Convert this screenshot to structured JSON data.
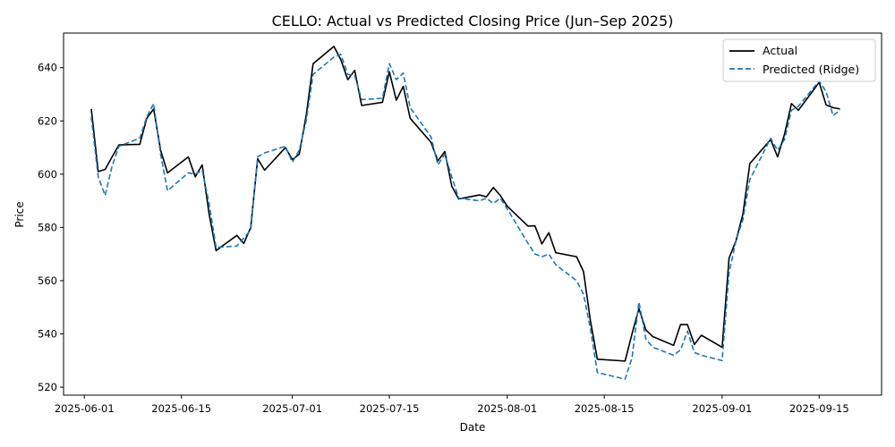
{
  "chart_data": {
    "type": "line",
    "title": "CELLO: Actual vs Predicted Closing Price (Jun–Sep 2025)",
    "xlabel": "Date",
    "ylabel": "Price",
    "xlim": [
      "2025-05-29",
      "2025-09-24"
    ],
    "ylim": [
      517,
      653
    ],
    "x_ticks": [
      "2025-06-01",
      "2025-06-15",
      "2025-07-01",
      "2025-07-15",
      "2025-08-01",
      "2025-08-15",
      "2025-09-01",
      "2025-09-15"
    ],
    "y_ticks": [
      520,
      540,
      560,
      580,
      600,
      620,
      640
    ],
    "grid": false,
    "legend_position": "top-right",
    "x": [
      "2025-06-02",
      "2025-06-03",
      "2025-06-04",
      "2025-06-05",
      "2025-06-06",
      "2025-06-09",
      "2025-06-10",
      "2025-06-11",
      "2025-06-12",
      "2025-06-13",
      "2025-06-16",
      "2025-06-17",
      "2025-06-18",
      "2025-06-19",
      "2025-06-20",
      "2025-06-23",
      "2025-06-24",
      "2025-06-25",
      "2025-06-26",
      "2025-06-27",
      "2025-06-30",
      "2025-07-01",
      "2025-07-02",
      "2025-07-03",
      "2025-07-04",
      "2025-07-07",
      "2025-07-08",
      "2025-07-09",
      "2025-07-10",
      "2025-07-11",
      "2025-07-14",
      "2025-07-15",
      "2025-07-16",
      "2025-07-17",
      "2025-07-18",
      "2025-07-21",
      "2025-07-22",
      "2025-07-23",
      "2025-07-24",
      "2025-07-25",
      "2025-07-28",
      "2025-07-29",
      "2025-07-30",
      "2025-07-31",
      "2025-08-01",
      "2025-08-04",
      "2025-08-05",
      "2025-08-06",
      "2025-08-07",
      "2025-08-08",
      "2025-08-11",
      "2025-08-12",
      "2025-08-13",
      "2025-08-14",
      "2025-08-18",
      "2025-08-19",
      "2025-08-20",
      "2025-08-21",
      "2025-08-22",
      "2025-08-25",
      "2025-08-26",
      "2025-08-27",
      "2025-08-28",
      "2025-08-29",
      "2025-09-01",
      "2025-09-02",
      "2025-09-03",
      "2025-09-04",
      "2025-09-05",
      "2025-09-08",
      "2025-09-09",
      "2025-09-10",
      "2025-09-11",
      "2025-09-12",
      "2025-09-15",
      "2025-09-16",
      "2025-09-17",
      "2025-09-18"
    ],
    "series": [
      {
        "name": "Actual",
        "color": "#000000",
        "style": "solid",
        "values": [
          624.5,
          601.0,
          601.8,
          606.5,
          611.0,
          611.2,
          621.0,
          624.5,
          609.0,
          600.5,
          606.5,
          599.0,
          603.5,
          585.0,
          571.3,
          577.0,
          574.0,
          580.0,
          605.8,
          601.5,
          610.0,
          605.5,
          607.5,
          622.0,
          641.5,
          648.0,
          643.0,
          635.5,
          639.0,
          625.8,
          627.0,
          638.5,
          627.8,
          633.0,
          621.0,
          612.0,
          605.0,
          608.5,
          595.5,
          590.7,
          592.2,
          591.5,
          595.0,
          592.0,
          588.0,
          580.5,
          580.6,
          573.8,
          578.0,
          570.5,
          569.0,
          563.5,
          545.0,
          530.5,
          529.8,
          540.0,
          549.5,
          541.5,
          539.0,
          535.7,
          543.5,
          543.5,
          536.0,
          539.5,
          535.0,
          568.5,
          575.0,
          585.0,
          604.0,
          613.0,
          606.5,
          615.0,
          626.5,
          624.0,
          634.5,
          626.0,
          625.0,
          624.5
        ]
      },
      {
        "name": "Predicted (Ridge)",
        "color": "#1f77b4",
        "style": "dashed",
        "values": [
          621.5,
          599.0,
          592.0,
          603.0,
          610.5,
          613.5,
          621.5,
          626.5,
          607.5,
          593.8,
          600.5,
          600.0,
          601.5,
          589.0,
          572.5,
          573.0,
          576.0,
          579.0,
          606.5,
          608.0,
          610.5,
          604.5,
          609.0,
          620.0,
          637.5,
          644.0,
          645.0,
          637.5,
          637.0,
          628.0,
          628.5,
          641.5,
          635.5,
          638.0,
          625.0,
          614.0,
          603.5,
          607.5,
          599.0,
          591.0,
          590.0,
          591.0,
          589.0,
          591.0,
          587.0,
          574.0,
          570.0,
          569.0,
          570.0,
          566.0,
          560.0,
          555.0,
          542.0,
          525.5,
          523.0,
          531.0,
          552.0,
          538.0,
          535.0,
          532.0,
          534.0,
          541.0,
          533.0,
          532.0,
          530.0,
          563.0,
          575.0,
          583.0,
          598.0,
          613.5,
          609.0,
          613.0,
          624.0,
          625.5,
          635.0,
          631.0,
          622.0,
          624.0
        ]
      }
    ]
  }
}
